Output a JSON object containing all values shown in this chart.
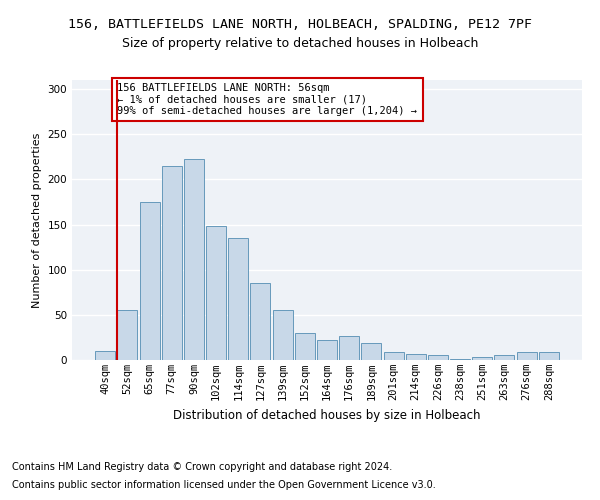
{
  "title1": "156, BATTLEFIELDS LANE NORTH, HOLBEACH, SPALDING, PE12 7PF",
  "title2": "Size of property relative to detached houses in Holbeach",
  "xlabel": "Distribution of detached houses by size in Holbeach",
  "ylabel": "Number of detached properties",
  "categories": [
    "40sqm",
    "52sqm",
    "65sqm",
    "77sqm",
    "90sqm",
    "102sqm",
    "114sqm",
    "127sqm",
    "139sqm",
    "152sqm",
    "164sqm",
    "176sqm",
    "189sqm",
    "201sqm",
    "214sqm",
    "226sqm",
    "238sqm",
    "251sqm",
    "263sqm",
    "276sqm",
    "288sqm"
  ],
  "values": [
    10,
    55,
    175,
    215,
    222,
    148,
    135,
    85,
    55,
    30,
    22,
    27,
    19,
    9,
    7,
    6,
    1,
    3,
    5,
    9,
    9
  ],
  "bar_color": "#c8d8e8",
  "bar_edge_color": "#6699bb",
  "vline_x_index": 1,
  "vline_color": "#cc0000",
  "annotation_text": "156 BATTLEFIELDS LANE NORTH: 56sqm\n← 1% of detached houses are smaller (17)\n99% of semi-detached houses are larger (1,204) →",
  "annotation_box_color": "#ffffff",
  "annotation_box_edge": "#cc0000",
  "footnote1": "Contains HM Land Registry data © Crown copyright and database right 2024.",
  "footnote2": "Contains public sector information licensed under the Open Government Licence v3.0.",
  "ylim": [
    0,
    310
  ],
  "yticks": [
    0,
    50,
    100,
    150,
    200,
    250,
    300
  ],
  "bg_color": "#eef2f7",
  "grid_color": "#ffffff",
  "title1_fontsize": 9.5,
  "title2_fontsize": 9,
  "xlabel_fontsize": 8.5,
  "ylabel_fontsize": 8,
  "tick_fontsize": 7.5,
  "annotation_fontsize": 7.5,
  "footnote_fontsize": 7
}
